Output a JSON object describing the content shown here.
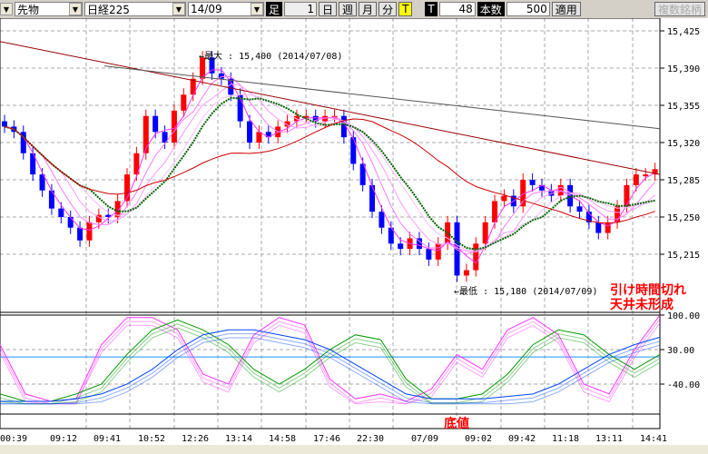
{
  "toolbar": {
    "market": "先物",
    "index": "日経225",
    "contract": "14/09",
    "bar_label": "足",
    "bar_value": "1",
    "day": "日",
    "week": "週",
    "month": "月",
    "minute": "分",
    "tick": "T",
    "t_label": "T",
    "t_value": "48",
    "count_label": "本数",
    "count_value": "500",
    "apply": "適用",
    "multi": "複数銘柄"
  },
  "annotations": {
    "max": "←最大 : 15,400 (2014/07/08)",
    "min": "←最低 : 15,180 (2014/07/09)",
    "note1": "引け時間切れ",
    "note2": "天井未形成",
    "bottom": "底値"
  },
  "chart_data": [
    {
      "type": "candlestick",
      "yaxis_ticks": [
        "15,425",
        "15,390",
        "15,355",
        "15,320",
        "15,285",
        "15,250",
        "15,215"
      ],
      "ylim": [
        15170,
        15432
      ],
      "close": [
        15335,
        15330,
        15310,
        15290,
        15275,
        15258,
        15250,
        15240,
        15228,
        15245,
        15252,
        15250,
        15265,
        15290,
        15310,
        15345,
        15330,
        15320,
        15350,
        15365,
        15380,
        15400,
        15385,
        15380,
        15365,
        15340,
        15320,
        15330,
        15325,
        15335,
        15340,
        15345,
        15345,
        15340,
        15345,
        15345,
        15325,
        15300,
        15280,
        15255,
        15240,
        15225,
        15220,
        15230,
        15220,
        15210,
        15225,
        15245,
        15195,
        15200,
        15225,
        15245,
        15265,
        15270,
        15260,
        15285,
        15280,
        15275,
        15270,
        15280,
        15260,
        15255,
        15245,
        15235,
        15245,
        15260,
        15280,
        15290,
        15290,
        15295
      ],
      "long_ma_darkred": [
        15415,
        15290
      ],
      "long_ma_gray": [
        15392,
        15333
      ],
      "colors": {
        "up": "#ff0000",
        "down": "#0000ff",
        "ma_short": "#ff66ff",
        "ma_mid": "#cc0000",
        "ma_green": "#006600"
      }
    },
    {
      "type": "line",
      "yaxis_ticks": [
        "100.00",
        "30.00",
        "-40.00"
      ],
      "ylim": [
        -80,
        100
      ],
      "series": [
        {
          "color": "#ff33ff",
          "values": [
            40,
            -60,
            -75,
            -70,
            40,
            95,
            95,
            70,
            -20,
            -40,
            60,
            95,
            80,
            -30,
            -70,
            -60,
            -75,
            -50,
            20,
            -10,
            70,
            95,
            60,
            -40,
            -60,
            30,
            100
          ]
        },
        {
          "color": "#009900",
          "values": [
            -60,
            -75,
            -75,
            -60,
            -40,
            20,
            70,
            90,
            70,
            40,
            -10,
            -40,
            -10,
            30,
            60,
            50,
            -30,
            -70,
            -70,
            -60,
            -20,
            40,
            70,
            60,
            20,
            -10,
            20
          ]
        },
        {
          "color": "#0044ff",
          "values": [
            -75,
            -75,
            -75,
            -70,
            -60,
            -40,
            -10,
            30,
            60,
            70,
            70,
            60,
            50,
            30,
            0,
            -30,
            -60,
            -70,
            -70,
            -70,
            -65,
            -60,
            -40,
            -10,
            20,
            40,
            55
          ]
        }
      ]
    }
  ],
  "time_axis": [
    "00:39",
    "09:12",
    "09:41",
    "10:52",
    "12:26",
    "13:14",
    "14:58",
    "17:46",
    "22:30",
    "07/09",
    "09:02",
    "09:42",
    "11:18",
    "13:11",
    "14:41"
  ]
}
